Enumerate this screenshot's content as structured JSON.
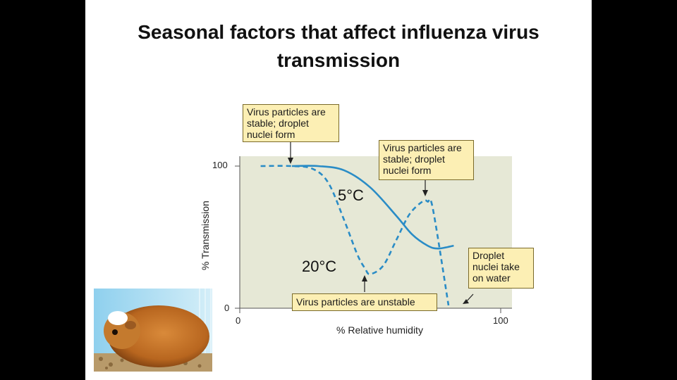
{
  "slide": {
    "title_line1": "Seasonal factors that affect influenza virus",
    "title_line2": "transmission"
  },
  "chart_data": {
    "type": "line",
    "xlabel": "% Relative humidity",
    "ylabel": "% Transmission",
    "xlim": [
      0,
      100
    ],
    "ylim": [
      0,
      100
    ],
    "x_ticks": [
      "0",
      "100"
    ],
    "y_ticks": [
      "0",
      "100"
    ],
    "background_color": "#e6e8d6",
    "series": [
      {
        "name": "5°C",
        "style": "solid",
        "color": "#2a8cc6",
        "x": [
          20,
          30,
          40,
          50,
          60,
          66,
          72,
          76,
          82
        ],
        "y": [
          100,
          100,
          97,
          85,
          65,
          52,
          44,
          42,
          44
        ]
      },
      {
        "name": "20°C",
        "style": "dashed",
        "color": "#2a8cc6",
        "x": [
          8,
          20,
          28,
          34,
          40,
          45,
          48,
          50,
          55,
          60,
          65,
          70,
          72,
          74,
          80
        ],
        "y": [
          100,
          100,
          98,
          88,
          62,
          38,
          28,
          24,
          30,
          48,
          66,
          75,
          75,
          70,
          2
        ]
      }
    ],
    "annotations": [
      {
        "text": "Virus particles are stable; droplet nuclei form",
        "points_to": "x≈20, y=100"
      },
      {
        "text": "Virus particles are stable; droplet nuclei form",
        "points_to": "x≈72, y≈75 (20°C peak)"
      },
      {
        "text": "Virus particles are unstable",
        "points_to": "x≈50, y≈24 (20°C minimum)"
      },
      {
        "text": "Droplet nuclei take on water",
        "points_to": "x≈85, y≈2"
      }
    ],
    "callout_color": "#fcefb4"
  },
  "photo": {
    "subject": "guinea pig",
    "icon": "guinea-pig-photo"
  }
}
